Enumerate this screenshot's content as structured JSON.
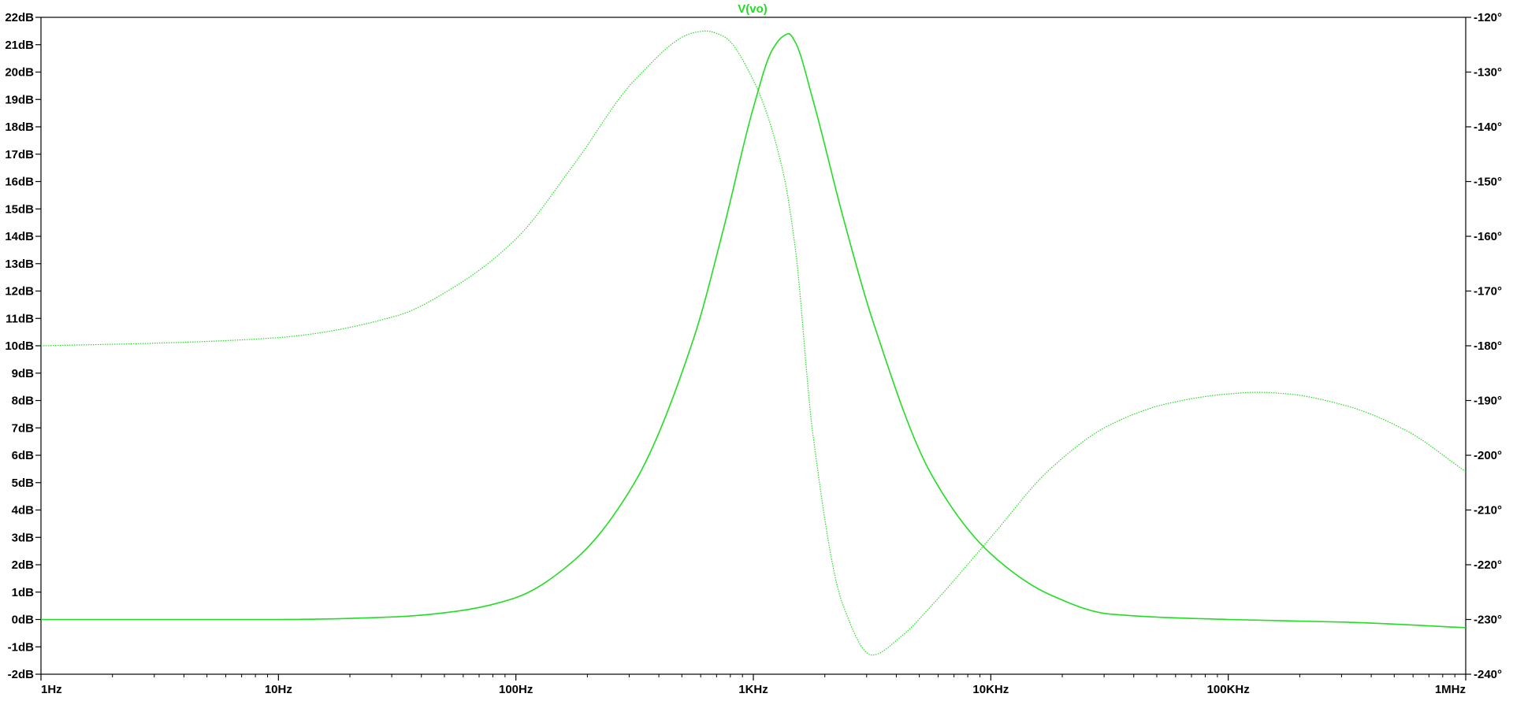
{
  "chart_data": {
    "type": "line",
    "title": "V(vo)",
    "x_scale": "log",
    "xlim": [
      1,
      1000000
    ],
    "ylim_left": [
      -2,
      22
    ],
    "ylim_right": [
      -240,
      -120
    ],
    "grid": false,
    "x_ticks": [
      {
        "value": 1,
        "label": "1Hz"
      },
      {
        "value": 10,
        "label": "10Hz"
      },
      {
        "value": 100,
        "label": "100Hz"
      },
      {
        "value": 1000,
        "label": "1KHz"
      },
      {
        "value": 10000,
        "label": "10KHz"
      },
      {
        "value": 100000,
        "label": "100KHz"
      },
      {
        "value": 1000000,
        "label": "1MHz"
      }
    ],
    "y_left_ticks": [
      {
        "value": 22,
        "label": "22dB"
      },
      {
        "value": 21,
        "label": "21dB"
      },
      {
        "value": 20,
        "label": "20dB"
      },
      {
        "value": 19,
        "label": "19dB"
      },
      {
        "value": 18,
        "label": "18dB"
      },
      {
        "value": 17,
        "label": "17dB"
      },
      {
        "value": 16,
        "label": "16dB"
      },
      {
        "value": 15,
        "label": "15dB"
      },
      {
        "value": 14,
        "label": "14dB"
      },
      {
        "value": 13,
        "label": "13dB"
      },
      {
        "value": 12,
        "label": "12dB"
      },
      {
        "value": 11,
        "label": "11dB"
      },
      {
        "value": 10,
        "label": "10dB"
      },
      {
        "value": 9,
        "label": "9dB"
      },
      {
        "value": 8,
        "label": "8dB"
      },
      {
        "value": 7,
        "label": "7dB"
      },
      {
        "value": 6,
        "label": "6dB"
      },
      {
        "value": 5,
        "label": "5dB"
      },
      {
        "value": 4,
        "label": "4dB"
      },
      {
        "value": 3,
        "label": "3dB"
      },
      {
        "value": 2,
        "label": "2dB"
      },
      {
        "value": 1,
        "label": "1dB"
      },
      {
        "value": 0,
        "label": "0dB"
      },
      {
        "value": -1,
        "label": "-1dB"
      },
      {
        "value": -2,
        "label": "-2dB"
      }
    ],
    "y_right_ticks": [
      {
        "value": -120,
        "label": "-120°"
      },
      {
        "value": -130,
        "label": "-130°"
      },
      {
        "value": -140,
        "label": "-140°"
      },
      {
        "value": -150,
        "label": "-150°"
      },
      {
        "value": -160,
        "label": "-160°"
      },
      {
        "value": -170,
        "label": "-170°"
      },
      {
        "value": -180,
        "label": "-180°"
      },
      {
        "value": -190,
        "label": "-190°"
      },
      {
        "value": -200,
        "label": "-200°"
      },
      {
        "value": -210,
        "label": "-210°"
      },
      {
        "value": -220,
        "label": "-220°"
      },
      {
        "value": -230,
        "label": "-230°"
      },
      {
        "value": -240,
        "label": "-240°"
      }
    ],
    "series": [
      {
        "axis": "left",
        "style": "solid",
        "color": "#22dd22",
        "x": [
          1,
          10,
          31.6,
          56.2,
          100,
          178,
          316,
          562,
          750,
          1000,
          1200,
          1330,
          1410,
          1500,
          1780,
          2370,
          3160,
          5620,
          10000,
          17800,
          31600,
          100000,
          316000,
          1000000
        ],
        "y": [
          0.0,
          0.0,
          0.1,
          0.3,
          0.8,
          2.2,
          5.0,
          10.3,
          14.3,
          18.7,
          20.8,
          21.3,
          21.4,
          21.1,
          19.0,
          14.8,
          11.0,
          5.3,
          2.4,
          0.9,
          0.2,
          0.0,
          -0.1,
          -0.3
        ]
      },
      {
        "axis": "right",
        "style": "dotted",
        "color": "#22dd22",
        "x": [
          1,
          3.16,
          10,
          31.6,
          56.2,
          100,
          178,
          316,
          562,
          630,
          750,
          1000,
          1330,
          1500,
          1780,
          2370,
          3160,
          4220,
          5620,
          10000,
          17800,
          31600,
          56200,
          100000,
          133000,
          178000,
          316000,
          562000,
          1000000
        ],
        "y": [
          -180.0,
          -179.5,
          -178.5,
          -174.5,
          -169.0,
          -160.5,
          -146.5,
          -131.5,
          -122.8,
          -122.5,
          -123.5,
          -131.5,
          -148.0,
          -162.0,
          -196.0,
          -227.0,
          -236.5,
          -233.0,
          -227.5,
          -215.0,
          -202.5,
          -194.5,
          -190.5,
          -188.8,
          -188.5,
          -188.8,
          -191.0,
          -195.5,
          -203.0
        ]
      }
    ]
  }
}
